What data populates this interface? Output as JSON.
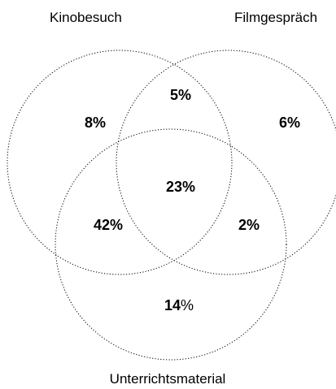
{
  "sets": {
    "kinobesuch": {
      "label": "Kinobesuch"
    },
    "filmgespraech": {
      "label": "Filmgespräch"
    },
    "unterrichtsmaterial": {
      "label": "Unterrichtsmaterial"
    }
  },
  "regions": {
    "kinobesuch_only": {
      "num": "8%",
      "unit": ""
    },
    "kinobesuch_filmgespraech": {
      "num": "5%",
      "unit": ""
    },
    "filmgespraech_only": {
      "num": "6%",
      "unit": ""
    },
    "all_three": {
      "num": "23%",
      "unit": ""
    },
    "kinobesuch_unterrichtsmaterial": {
      "num": "42%",
      "unit": ""
    },
    "filmgespraech_unterrichtsmaterial": {
      "num": "2%",
      "unit": ""
    },
    "unterrichtsmaterial_only": {
      "num": "14",
      "unit": "%"
    }
  },
  "style": {
    "circle_stroke": "#000000",
    "circle_dash": "dotted"
  }
}
